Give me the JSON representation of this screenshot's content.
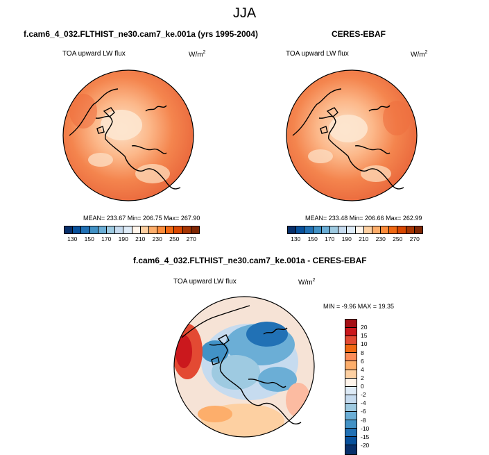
{
  "main_title": "JJA",
  "panels": [
    {
      "title": "f.cam6_4_032.FLTHIST_ne30.cam7_ke.001a (yrs 1995-2004)",
      "variable": "TOA upward LW flux",
      "units": "W/m",
      "units_sup": "2",
      "stats": "MEAN= 233.67  Min= 206.75  Max= 267.90"
    },
    {
      "title": "CERES-EBAF",
      "variable": "TOA upward LW flux",
      "units": "W/m",
      "units_sup": "2",
      "stats": "MEAN= 233.48  Min= 206.66  Max= 262.99"
    },
    {
      "title": "f.cam6_4_032.FLTHIST_ne30.cam7_ke.001a - CERES-EBAF",
      "variable": "TOA upward LW flux",
      "units": "W/m",
      "units_sup": "2",
      "stats": "MIN =  -9.96 MAX =  19.35"
    }
  ],
  "colorbar_abs": {
    "labels": [
      "130",
      "150",
      "170",
      "190",
      "210",
      "230",
      "250",
      "270"
    ],
    "colors": [
      "#08306b",
      "#08519c",
      "#2171b5",
      "#4292c6",
      "#6baed6",
      "#9ecae1",
      "#c6dbef",
      "#deebf7",
      "#fff5eb",
      "#fdd0a2",
      "#fdae6b",
      "#fd8d3c",
      "#f16913",
      "#d94801",
      "#a63603",
      "#7f2704"
    ]
  },
  "colorbar_diff": {
    "labels": [
      "20",
      "15",
      "10",
      "8",
      "6",
      "4",
      "2",
      "0",
      "-2",
      "-4",
      "-6",
      "-8",
      "-10",
      "-15",
      "-20"
    ],
    "colors": [
      "#a50f15",
      "#cb181d",
      "#e34a33",
      "#f16913",
      "#fc8d59",
      "#fdae6b",
      "#fdd0a2",
      "#fff5eb",
      "#deebf7",
      "#c6dbef",
      "#9ecae1",
      "#6baed6",
      "#4292c6",
      "#2171b5",
      "#08519c",
      "#08306b"
    ]
  },
  "chart_data": [
    {
      "type": "heatmap",
      "title": "f.cam6_4_032.FLTHIST_ne30.cam7_ke.001a (yrs 1995-2004)",
      "variable": "TOA upward LW flux",
      "units": "W/m2",
      "projection": "north polar stereographic",
      "season": "JJA",
      "mean": 233.67,
      "min": 206.75,
      "max": 267.9,
      "colorbar_levels": [
        130,
        150,
        170,
        190,
        210,
        230,
        250,
        270
      ]
    },
    {
      "type": "heatmap",
      "title": "CERES-EBAF",
      "variable": "TOA upward LW flux",
      "units": "W/m2",
      "projection": "north polar stereographic",
      "season": "JJA",
      "mean": 233.48,
      "min": 206.66,
      "max": 262.99,
      "colorbar_levels": [
        130,
        150,
        170,
        190,
        210,
        230,
        250,
        270
      ]
    },
    {
      "type": "heatmap",
      "title": "f.cam6_4_032.FLTHIST_ne30.cam7_ke.001a - CERES-EBAF",
      "variable": "TOA upward LW flux",
      "units": "W/m2",
      "projection": "north polar stereographic",
      "season": "JJA",
      "min": -9.96,
      "max": 19.35,
      "colorbar_levels": [
        20,
        15,
        10,
        8,
        6,
        4,
        2,
        0,
        -2,
        -4,
        -6,
        -8,
        -10,
        -15,
        -20
      ]
    }
  ]
}
